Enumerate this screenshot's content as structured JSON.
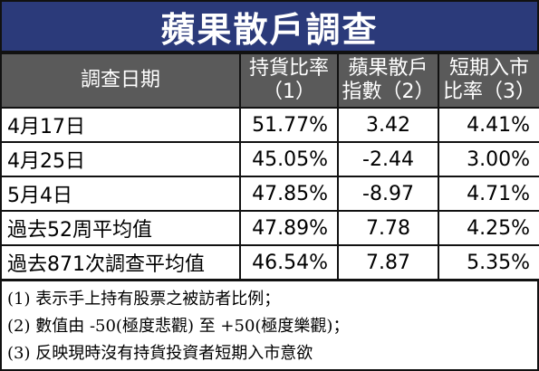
{
  "title": "蘋果散戶調查",
  "headers": {
    "date": "調查日期",
    "holding": [
      "持貨比率",
      "（1）"
    ],
    "sentiment": [
      "蘋果散戶",
      "指數（2）"
    ],
    "shortterm": [
      "短期入市",
      "比率（3）"
    ]
  },
  "rows": [
    {
      "label": "4月17日",
      "holding": "51.77%",
      "sentiment": "3.42",
      "shortterm": "4.41%"
    },
    {
      "label": "4月25日",
      "holding": "45.05%",
      "sentiment": "-2.44",
      "shortterm": "3.00%"
    },
    {
      "label": "5月4日",
      "holding": "47.85%",
      "sentiment": "-8.97",
      "shortterm": "4.71%"
    },
    {
      "label": "過去52周平均值",
      "holding": "47.89%",
      "sentiment": "7.78",
      "shortterm": "4.25%"
    },
    {
      "label": "過去871次調查平均值",
      "holding": "46.54%",
      "sentiment": "7.87",
      "shortterm": "5.35%"
    }
  ],
  "notes": [
    "(1) 表示手上持有股票之被訪者比例；",
    "(2) 數值由 -50(極度悲觀) 至 +50(極度樂觀)；",
    "(3) 反映現時沒有持貨投資者短期入市意欲"
  ]
}
